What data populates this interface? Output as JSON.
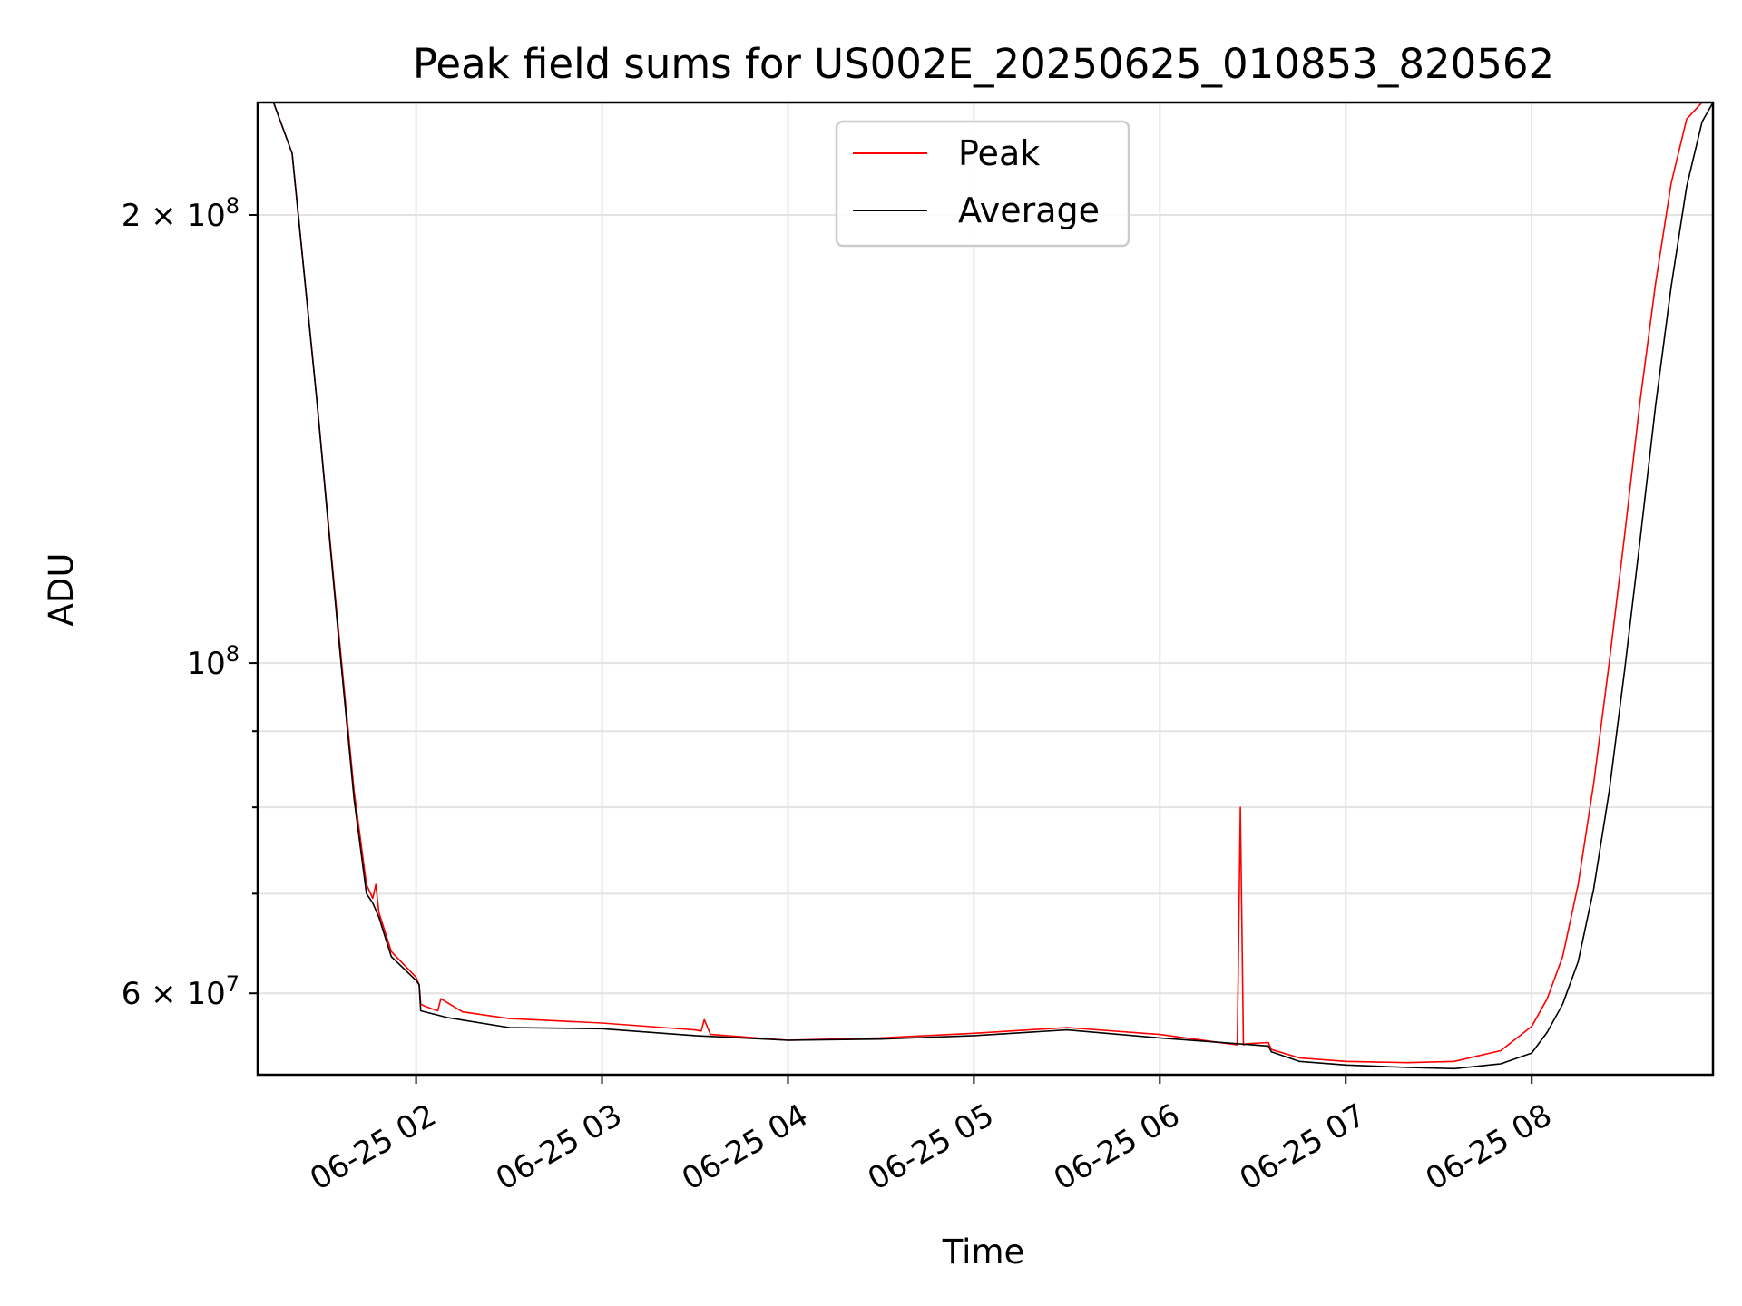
{
  "chart_data": {
    "type": "line",
    "title": "Peak field sums for US002E_20250625_010853_820562",
    "xlabel": "Time",
    "ylabel": "ADU",
    "y_scale": "log",
    "ylim": [
      52900000,
      238000000
    ],
    "xlim": [
      "2025-06-25T01:08:53",
      "2025-06-25T08:58:30"
    ],
    "grid": true,
    "legend_position": "top-center",
    "x_ticks": [
      {
        "value": "2025-06-25T02:00:00",
        "label": "06-25 02"
      },
      {
        "value": "2025-06-25T03:00:00",
        "label": "06-25 03"
      },
      {
        "value": "2025-06-25T04:00:00",
        "label": "06-25 04"
      },
      {
        "value": "2025-06-25T05:00:00",
        "label": "06-25 05"
      },
      {
        "value": "2025-06-25T06:00:00",
        "label": "06-25 06"
      },
      {
        "value": "2025-06-25T07:00:00",
        "label": "06-25 07"
      },
      {
        "value": "2025-06-25T08:00:00",
        "label": "06-25 08"
      }
    ],
    "y_major_ticks": [
      {
        "value": 60000000,
        "label": "6 × 10",
        "exponent": "7"
      },
      {
        "value": 100000000,
        "label": "10",
        "exponent": "8"
      },
      {
        "value": 200000000,
        "label": "2 × 10",
        "exponent": "8"
      }
    ],
    "y_minor_ticks": [
      70000000,
      80000000,
      90000000
    ],
    "series": [
      {
        "name": "Peak",
        "color": "#ff0000",
        "x": [
          "2025-06-25T01:08:53",
          "2025-06-25T01:14:00",
          "2025-06-25T01:20:00",
          "2025-06-25T01:28:00",
          "2025-06-25T01:35:00",
          "2025-06-25T01:40:00",
          "2025-06-25T01:44:00",
          "2025-06-25T01:46:00",
          "2025-06-25T01:47:00",
          "2025-06-25T01:48:00",
          "2025-06-25T01:52:00",
          "2025-06-25T02:00:00",
          "2025-06-25T02:01:00",
          "2025-06-25T02:01:30",
          "2025-06-25T02:03:00",
          "2025-06-25T02:05:00",
          "2025-06-25T02:07:00",
          "2025-06-25T02:08:00",
          "2025-06-25T02:15:00",
          "2025-06-25T02:30:00",
          "2025-06-25T03:00:00",
          "2025-06-25T03:30:00",
          "2025-06-25T03:32:00",
          "2025-06-25T03:33:00",
          "2025-06-25T03:35:00",
          "2025-06-25T04:00:00",
          "2025-06-25T04:30:00",
          "2025-06-25T05:00:00",
          "2025-06-25T05:30:00",
          "2025-06-25T06:00:00",
          "2025-06-25T06:25:00",
          "2025-06-25T06:26:00",
          "2025-06-25T06:27:00",
          "2025-06-25T06:28:00",
          "2025-06-25T06:35:00",
          "2025-06-25T06:36:00",
          "2025-06-25T06:45:00",
          "2025-06-25T07:00:00",
          "2025-06-25T07:20:00",
          "2025-06-25T07:35:00",
          "2025-06-25T07:50:00",
          "2025-06-25T08:00:00",
          "2025-06-25T08:05:00",
          "2025-06-25T08:10:00",
          "2025-06-25T08:15:00",
          "2025-06-25T08:20:00",
          "2025-06-25T08:25:00",
          "2025-06-25T08:30:00",
          "2025-06-25T08:35:00",
          "2025-06-25T08:40:00",
          "2025-06-25T08:45:00",
          "2025-06-25T08:50:00",
          "2025-06-25T08:55:00",
          "2025-06-25T08:58:30"
        ],
        "values": [
          238000000,
          238000000,
          220000000,
          150000000,
          105000000,
          82000000,
          71000000,
          69500000,
          71000000,
          68000000,
          64000000,
          61500000,
          60800000,
          59000000,
          58800000,
          58600000,
          58400000,
          59500000,
          58300000,
          57700000,
          57300000,
          56700000,
          56600000,
          57600000,
          56300000,
          55800000,
          56000000,
          56400000,
          56900000,
          56300000,
          55400000,
          80000000,
          55400000,
          55500000,
          55600000,
          55000000,
          54300000,
          54000000,
          53900000,
          54000000,
          54900000,
          57000000,
          59500000,
          63500000,
          71000000,
          83000000,
          100000000,
          122000000,
          150000000,
          180000000,
          210000000,
          232000000,
          238000000,
          238000000
        ]
      },
      {
        "name": "Average",
        "color": "#000000",
        "x": [
          "2025-06-25T01:08:53",
          "2025-06-25T01:14:00",
          "2025-06-25T01:20:00",
          "2025-06-25T01:28:00",
          "2025-06-25T01:35:00",
          "2025-06-25T01:40:00",
          "2025-06-25T01:44:00",
          "2025-06-25T01:46:00",
          "2025-06-25T01:48:00",
          "2025-06-25T01:52:00",
          "2025-06-25T02:00:00",
          "2025-06-25T02:01:00",
          "2025-06-25T02:01:30",
          "2025-06-25T02:10:00",
          "2025-06-25T02:30:00",
          "2025-06-25T03:00:00",
          "2025-06-25T03:30:00",
          "2025-06-25T04:00:00",
          "2025-06-25T04:30:00",
          "2025-06-25T05:00:00",
          "2025-06-25T05:30:00",
          "2025-06-25T06:00:00",
          "2025-06-25T06:30:00",
          "2025-06-25T06:35:00",
          "2025-06-25T06:36:00",
          "2025-06-25T06:45:00",
          "2025-06-25T07:00:00",
          "2025-06-25T07:20:00",
          "2025-06-25T07:35:00",
          "2025-06-25T07:50:00",
          "2025-06-25T08:00:00",
          "2025-06-25T08:05:00",
          "2025-06-25T08:10:00",
          "2025-06-25T08:15:00",
          "2025-06-25T08:20:00",
          "2025-06-25T08:25:00",
          "2025-06-25T08:30:00",
          "2025-06-25T08:35:00",
          "2025-06-25T08:40:00",
          "2025-06-25T08:45:00",
          "2025-06-25T08:50:00",
          "2025-06-25T08:55:00",
          "2025-06-25T08:58:30"
        ],
        "values": [
          238000000,
          238000000,
          220000000,
          150000000,
          104000000,
          81000000,
          70000000,
          69000000,
          67500000,
          63500000,
          61200000,
          60800000,
          58400000,
          57800000,
          56900000,
          56800000,
          56200000,
          55800000,
          55900000,
          56200000,
          56700000,
          56000000,
          55400000,
          55300000,
          54800000,
          54000000,
          53700000,
          53500000,
          53400000,
          53800000,
          54700000,
          56500000,
          59000000,
          63000000,
          70500000,
          82000000,
          99000000,
          121000000,
          149000000,
          179000000,
          209000000,
          231000000,
          238000000
        ]
      }
    ]
  }
}
